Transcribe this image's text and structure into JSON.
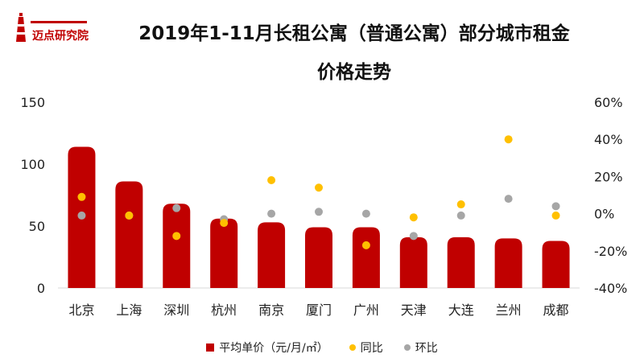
{
  "logo": {
    "name": "迈点研究院"
  },
  "title": {
    "line1": "2019年1-11月长租公寓（普通公寓）部分城市租金",
    "line2": "价格走势"
  },
  "colors": {
    "bar": "#c00000",
    "yoy": "#ffc000",
    "mom": "#a6a6a6"
  },
  "legend": {
    "bar": "平均单价（元/月/㎡）",
    "yoy": "同比",
    "mom": "环比"
  },
  "chart_data": {
    "type": "bar",
    "categories": [
      "北京",
      "上海",
      "深圳",
      "杭州",
      "南京",
      "厦门",
      "广州",
      "天津",
      "大连",
      "兰州",
      "成都"
    ],
    "series": [
      {
        "name": "平均单价（元/月/㎡）",
        "axis": "left",
        "type": "bar",
        "values": [
          114,
          86,
          68,
          56,
          53,
          49,
          49,
          41,
          41,
          40,
          38
        ]
      },
      {
        "name": "同比",
        "axis": "right",
        "type": "scatter",
        "values": [
          9,
          -1,
          -12,
          -5,
          18,
          14,
          -17,
          -2,
          5,
          40,
          -1
        ]
      },
      {
        "name": "环比",
        "axis": "right",
        "type": "scatter",
        "values": [
          -1,
          -1,
          3,
          -3,
          0,
          1,
          0,
          -12,
          -1,
          8,
          4
        ]
      }
    ],
    "y_left": {
      "min": 0,
      "max": 150,
      "ticks": [
        0,
        50,
        100,
        150
      ]
    },
    "y_right": {
      "min": -40,
      "max": 60,
      "ticks": [
        "-40%",
        "-20%",
        "0%",
        "20%",
        "40%",
        "60%"
      ]
    },
    "grid": false,
    "legend_position": "bottom"
  }
}
